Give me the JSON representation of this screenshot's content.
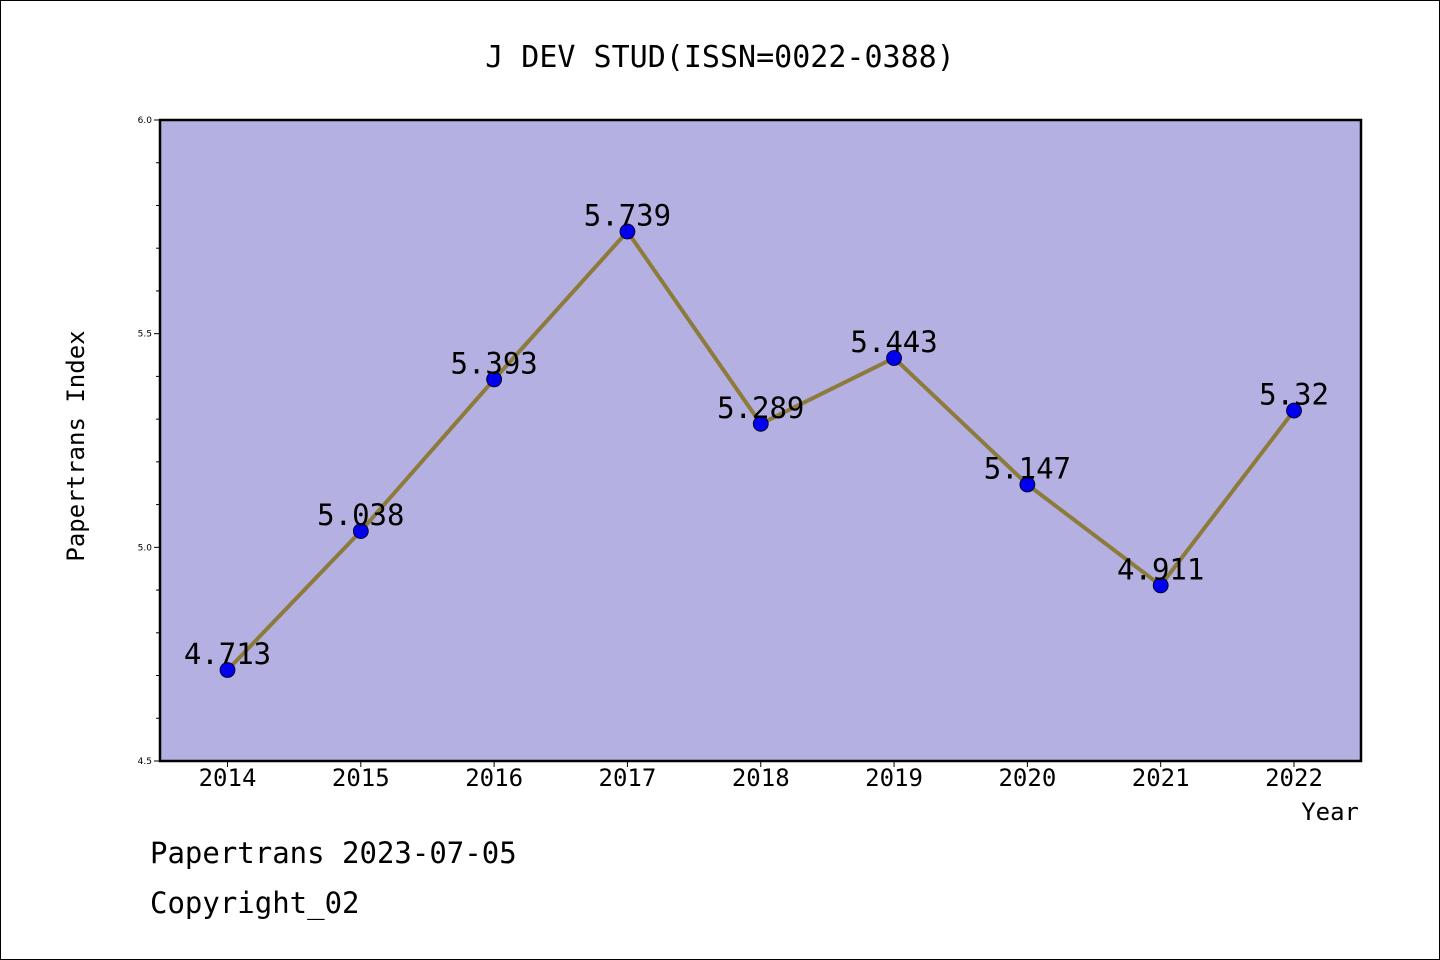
{
  "chart_data": {
    "type": "line",
    "title": "J DEV STUD(ISSN=0022-0388)",
    "xlabel": "Year",
    "ylabel": "Papertrans Index",
    "categories": [
      "2014",
      "2015",
      "2016",
      "2017",
      "2018",
      "2019",
      "2020",
      "2021",
      "2022"
    ],
    "values": [
      4.713,
      5.038,
      5.393,
      5.739,
      5.289,
      5.443,
      5.147,
      4.911,
      5.32
    ],
    "data_labels": [
      "4.713",
      "5.038",
      "5.393",
      "5.739",
      "5.289",
      "5.443",
      "5.147",
      "4.911",
      "5.32"
    ],
    "ylim": [
      4.5,
      6.0
    ],
    "y_ticks": [
      "4.5",
      "5.0",
      "5.5",
      "6.0"
    ],
    "grid": false,
    "colors": {
      "plot_background": "#b5b0e2",
      "line": "#8c7b3a",
      "marker": "#0000ee"
    }
  },
  "footer": {
    "line1": "Papertrans 2023-07-05",
    "line2": "Copyright_02"
  }
}
